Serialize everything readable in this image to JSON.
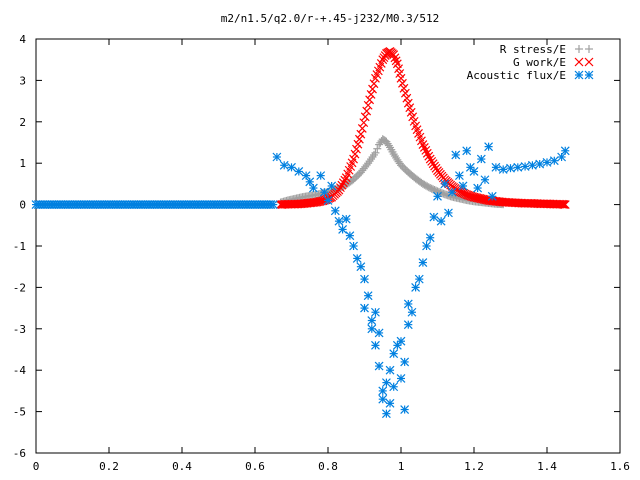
{
  "chart_data": {
    "type": "scatter",
    "title": "m2/n1.5/q2.0/r-+.45-j232/M0.3/512",
    "xlabel": "",
    "ylabel": "",
    "xlim": [
      0,
      1.6
    ],
    "ylim": [
      -6,
      4
    ],
    "x_ticks": [
      0,
      0.2,
      0.4,
      0.6,
      0.8,
      1,
      1.2,
      1.4,
      1.6
    ],
    "y_ticks": [
      -6,
      -5,
      -4,
      -3,
      -2,
      -1,
      0,
      1,
      2,
      3,
      4
    ],
    "x_tick_labels": [
      "0",
      "0.2",
      "0.4",
      "0.6",
      "0.8",
      "1",
      "1.2",
      "1.4",
      "1.6"
    ],
    "y_tick_labels": [
      "-6",
      "-5",
      "-4",
      "-3",
      "-2",
      "-1",
      "0",
      "1",
      "2",
      "3",
      "4"
    ],
    "grid": false,
    "legend_position": "top-right",
    "series": [
      {
        "name": "R stress/E",
        "marker": "plus",
        "color": "#a0a0a0",
        "points": [
          [
            0.67,
            0.05
          ],
          [
            0.69,
            0.1
          ],
          [
            0.71,
            0.14
          ],
          [
            0.73,
            0.18
          ],
          [
            0.75,
            0.21
          ],
          [
            0.77,
            0.24
          ],
          [
            0.79,
            0.28
          ],
          [
            0.81,
            0.33
          ],
          [
            0.83,
            0.39
          ],
          [
            0.85,
            0.48
          ],
          [
            0.87,
            0.61
          ],
          [
            0.89,
            0.78
          ],
          [
            0.91,
            1.0
          ],
          [
            0.93,
            1.25
          ],
          [
            0.94,
            1.45
          ],
          [
            0.95,
            1.58
          ],
          [
            0.96,
            1.52
          ],
          [
            0.97,
            1.38
          ],
          [
            0.98,
            1.22
          ],
          [
            0.99,
            1.08
          ],
          [
            1.0,
            0.95
          ],
          [
            1.02,
            0.78
          ],
          [
            1.04,
            0.63
          ],
          [
            1.06,
            0.5
          ],
          [
            1.08,
            0.4
          ],
          [
            1.1,
            0.32
          ],
          [
            1.12,
            0.25
          ],
          [
            1.14,
            0.19
          ],
          [
            1.16,
            0.15
          ],
          [
            1.18,
            0.11
          ],
          [
            1.2,
            0.08
          ],
          [
            1.22,
            0.06
          ],
          [
            1.24,
            0.04
          ],
          [
            1.26,
            0.02
          ],
          [
            1.28,
            0.01
          ]
        ]
      },
      {
        "name": "G work/E",
        "marker": "cross",
        "color": "#ff0000",
        "points": [
          [
            0.67,
            0.0
          ],
          [
            0.69,
            0.01
          ],
          [
            0.71,
            0.01
          ],
          [
            0.73,
            0.02
          ],
          [
            0.75,
            0.04
          ],
          [
            0.77,
            0.06
          ],
          [
            0.79,
            0.1
          ],
          [
            0.81,
            0.18
          ],
          [
            0.83,
            0.35
          ],
          [
            0.85,
            0.65
          ],
          [
            0.87,
            1.1
          ],
          [
            0.89,
            1.7
          ],
          [
            0.91,
            2.4
          ],
          [
            0.93,
            3.05
          ],
          [
            0.95,
            3.5
          ],
          [
            0.96,
            3.65
          ],
          [
            0.97,
            3.7
          ],
          [
            0.98,
            3.62
          ],
          [
            0.99,
            3.4
          ],
          [
            1.0,
            3.05
          ],
          [
            1.02,
            2.45
          ],
          [
            1.04,
            1.9
          ],
          [
            1.06,
            1.45
          ],
          [
            1.08,
            1.1
          ],
          [
            1.1,
            0.82
          ],
          [
            1.12,
            0.6
          ],
          [
            1.14,
            0.44
          ],
          [
            1.16,
            0.32
          ],
          [
            1.18,
            0.24
          ],
          [
            1.2,
            0.18
          ],
          [
            1.22,
            0.14
          ],
          [
            1.24,
            0.1
          ],
          [
            1.26,
            0.08
          ],
          [
            1.28,
            0.06
          ],
          [
            1.3,
            0.05
          ],
          [
            1.32,
            0.04
          ],
          [
            1.34,
            0.03
          ],
          [
            1.36,
            0.03
          ],
          [
            1.38,
            0.02
          ],
          [
            1.4,
            0.02
          ],
          [
            1.42,
            0.01
          ],
          [
            1.44,
            0.01
          ],
          [
            1.45,
            0.0
          ]
        ]
      },
      {
        "name": "Acoustic flux/E",
        "marker": "star",
        "color": "#0080e0",
        "points": [
          [
            0.0,
            0.0
          ],
          [
            0.05,
            0.0
          ],
          [
            0.1,
            0.0
          ],
          [
            0.15,
            0.0
          ],
          [
            0.2,
            0.0
          ],
          [
            0.25,
            0.0
          ],
          [
            0.3,
            0.0
          ],
          [
            0.35,
            0.0
          ],
          [
            0.4,
            0.0
          ],
          [
            0.45,
            0.0
          ],
          [
            0.5,
            0.0
          ],
          [
            0.55,
            0.0
          ],
          [
            0.6,
            0.0
          ],
          [
            0.65,
            0.0
          ],
          [
            0.66,
            1.15
          ],
          [
            0.68,
            0.95
          ],
          [
            0.7,
            0.9
          ],
          [
            0.72,
            0.8
          ],
          [
            0.74,
            0.7
          ],
          [
            0.75,
            0.55
          ],
          [
            0.76,
            0.4
          ],
          [
            0.78,
            0.7
          ],
          [
            0.79,
            0.3
          ],
          [
            0.8,
            0.1
          ],
          [
            0.81,
            0.45
          ],
          [
            0.82,
            -0.15
          ],
          [
            0.83,
            -0.4
          ],
          [
            0.84,
            -0.6
          ],
          [
            0.85,
            -0.35
          ],
          [
            0.86,
            -0.75
          ],
          [
            0.87,
            -1.0
          ],
          [
            0.88,
            -1.3
          ],
          [
            0.89,
            -1.5
          ],
          [
            0.9,
            -1.8
          ],
          [
            0.9,
            -2.5
          ],
          [
            0.91,
            -2.2
          ],
          [
            0.92,
            -2.8
          ],
          [
            0.92,
            -3.0
          ],
          [
            0.93,
            -2.6
          ],
          [
            0.93,
            -3.4
          ],
          [
            0.94,
            -3.1
          ],
          [
            0.94,
            -3.9
          ],
          [
            0.95,
            -4.5
          ],
          [
            0.95,
            -4.7
          ],
          [
            0.96,
            -4.3
          ],
          [
            0.96,
            -5.05
          ],
          [
            0.97,
            -4.8
          ],
          [
            0.97,
            -4.0
          ],
          [
            0.98,
            -4.4
          ],
          [
            0.98,
            -3.6
          ],
          [
            0.99,
            -3.4
          ],
          [
            1.0,
            -3.3
          ],
          [
            1.0,
            -4.2
          ],
          [
            1.01,
            -4.95
          ],
          [
            1.01,
            -3.8
          ],
          [
            1.02,
            -2.9
          ],
          [
            1.02,
            -2.4
          ],
          [
            1.03,
            -2.6
          ],
          [
            1.04,
            -2.0
          ],
          [
            1.05,
            -1.8
          ],
          [
            1.06,
            -1.4
          ],
          [
            1.07,
            -1.0
          ],
          [
            1.08,
            -0.8
          ],
          [
            1.09,
            -0.3
          ],
          [
            1.1,
            0.2
          ],
          [
            1.11,
            -0.4
          ],
          [
            1.12,
            0.5
          ],
          [
            1.13,
            -0.2
          ],
          [
            1.14,
            0.3
          ],
          [
            1.15,
            1.2
          ],
          [
            1.16,
            0.7
          ],
          [
            1.17,
            0.45
          ],
          [
            1.18,
            1.3
          ],
          [
            1.19,
            0.9
          ],
          [
            1.2,
            0.8
          ],
          [
            1.21,
            0.4
          ],
          [
            1.22,
            1.1
          ],
          [
            1.23,
            0.6
          ],
          [
            1.24,
            1.4
          ],
          [
            1.25,
            0.2
          ],
          [
            1.26,
            0.9
          ],
          [
            1.28,
            0.85
          ],
          [
            1.3,
            0.88
          ],
          [
            1.32,
            0.9
          ],
          [
            1.34,
            0.92
          ],
          [
            1.36,
            0.95
          ],
          [
            1.38,
            0.98
          ],
          [
            1.4,
            1.02
          ],
          [
            1.42,
            1.06
          ],
          [
            1.44,
            1.15
          ],
          [
            1.45,
            1.3
          ]
        ]
      }
    ]
  }
}
